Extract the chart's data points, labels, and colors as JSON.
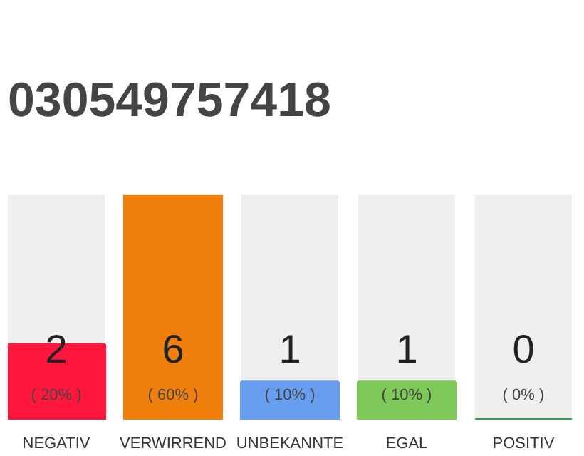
{
  "chart_data": {
    "type": "bar",
    "title": "030549757418",
    "categories": [
      "NEGATIV",
      "VERWIRREND",
      "UNBEKANNTE",
      "EGAL",
      "POSITIV"
    ],
    "values": [
      20,
      60,
      10,
      10,
      0
    ],
    "colors": [
      "#ff163c",
      "#f07f0c",
      "#679ef0",
      "#7ec95a",
      "#28a745"
    ],
    "value_labels": [
      "( 20% )",
      "( 60% )",
      "( 10% )",
      "( 10% )",
      "( 0% )"
    ],
    "annotations": [
      "2",
      "6",
      "1",
      "1",
      "0"
    ],
    "grid": false
  }
}
